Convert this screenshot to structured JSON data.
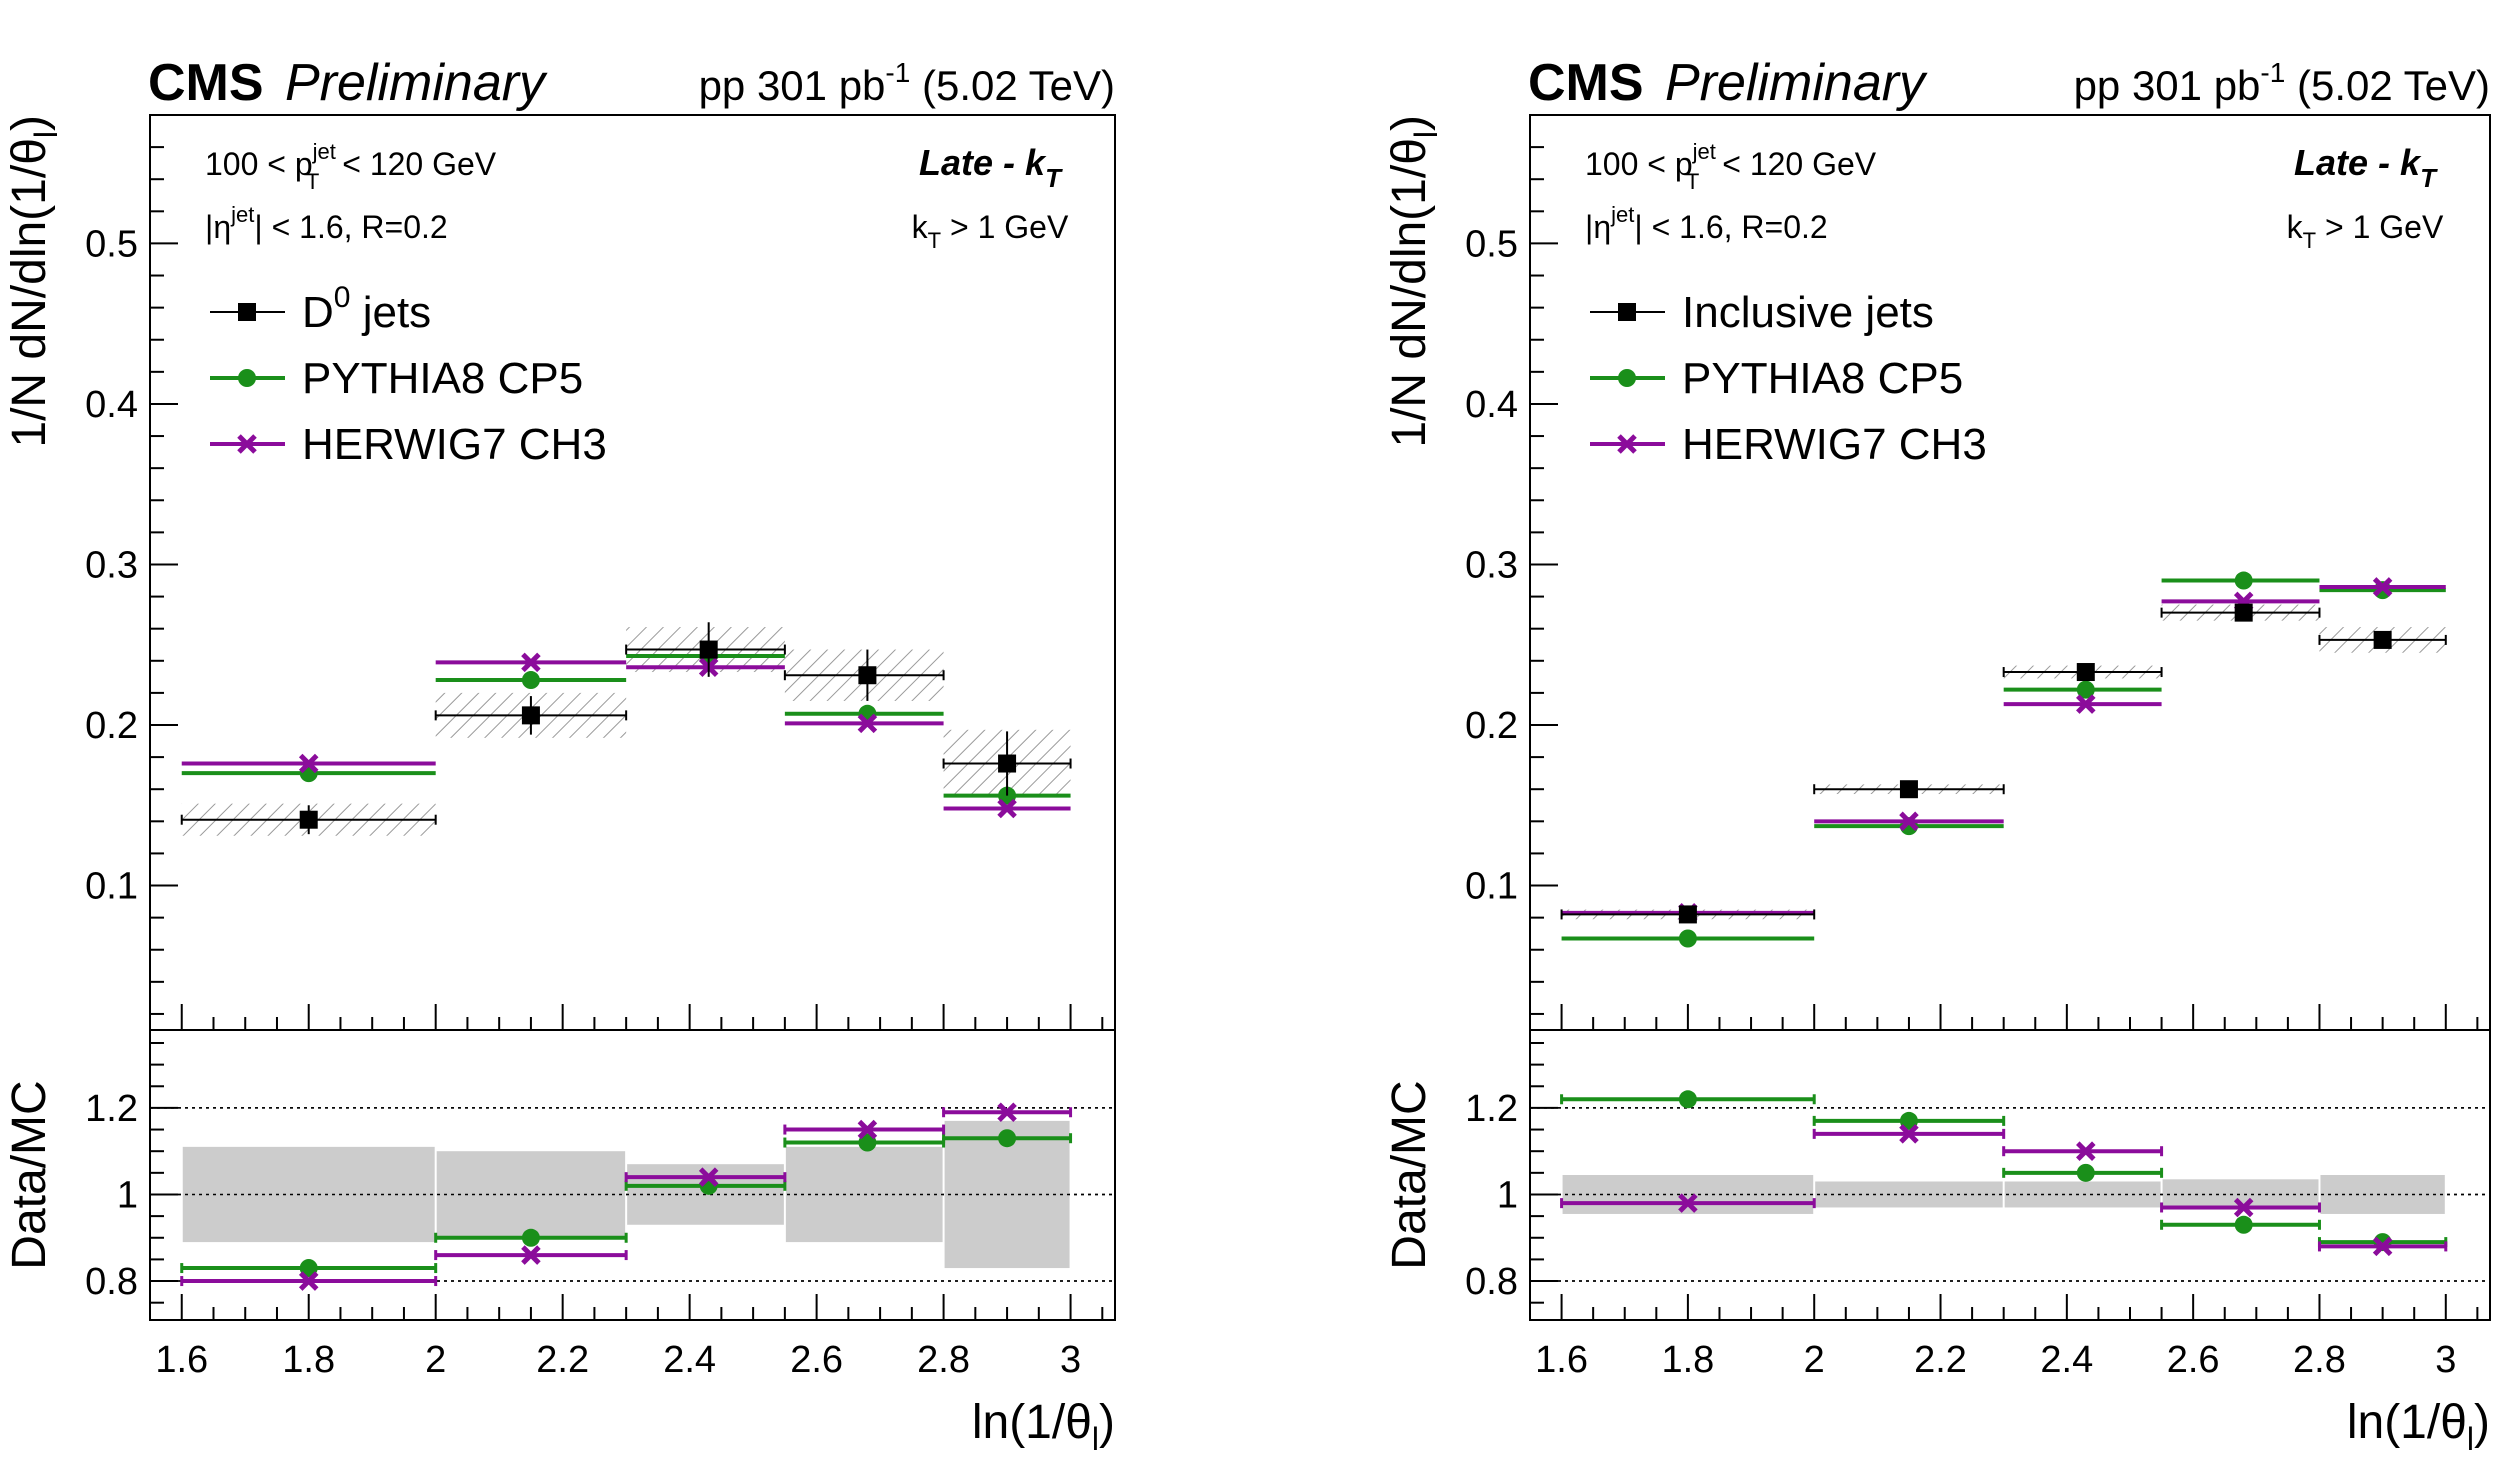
{
  "colors": {
    "data": "#000000",
    "pythia": "#1a8f1a",
    "herwig": "#8b0c9b",
    "syst_band": "#cccccc",
    "hatch": "#999999"
  },
  "chart_data": [
    {
      "type": "scatter",
      "panel": "left",
      "header": {
        "cms": "CMS",
        "preliminary": "Preliminary",
        "lumi": "pp 301 pb",
        "lumi_exp": "-1",
        "energy": "(5.02 TeV)"
      },
      "info": {
        "pt_lo": "100 < p",
        "pt_sup": "jet",
        "pt_sub": "T",
        "pt_hi": "< 120 GeV",
        "eta_pre": "|η",
        "eta_sup": "jet",
        "eta_post": "| < 1.6, R=0.2",
        "alg": "Late - k",
        "alg_sub": "T",
        "kt_pre": "k",
        "kt_sub": "T",
        "kt_post": "> 1 GeV"
      },
      "legend": [
        {
          "label": "D",
          "label_sup": "0",
          "label_post": " jets",
          "marker": "square",
          "series": "data"
        },
        {
          "label": "PYTHIA8 CP5",
          "marker": "circle",
          "series": "pythia"
        },
        {
          "label": "HERWIG7 CH3",
          "marker": "cross",
          "series": "herwig"
        }
      ],
      "ylabel": "1/N dN/dln(1/θ",
      "ylabel_sub": "l",
      "ylabel_close": ")",
      "ratio_ylabel": "Data/MC",
      "xlabel": "ln(1/θ",
      "xlabel_sub": "l",
      "xlabel_close": ")",
      "xlim": [
        1.55,
        3.07
      ],
      "ylim": [
        0.01,
        0.58
      ],
      "ratio_ylim": [
        0.71,
        1.38
      ],
      "yticks": [
        "0.1",
        "0.2",
        "0.3",
        "0.4",
        "0.5"
      ],
      "ratio_yticks": [
        "0.8",
        "1",
        "1.2"
      ],
      "xticks": [
        "1.6",
        "1.8",
        "2",
        "2.2",
        "2.4",
        "2.6",
        "2.8",
        "3"
      ],
      "bins": [
        [
          1.6,
          2.0
        ],
        [
          2.0,
          2.3
        ],
        [
          2.3,
          2.55
        ],
        [
          2.55,
          2.8
        ],
        [
          2.8,
          3.0
        ]
      ],
      "centers": [
        1.8,
        2.15,
        2.43,
        2.68,
        2.9
      ],
      "data": [
        0.141,
        0.206,
        0.247,
        0.231,
        0.176
      ],
      "data_stat": [
        0.009,
        0.012,
        0.017,
        0.016,
        0.02
      ],
      "data_syst": [
        0.01,
        0.014,
        0.014,
        0.016,
        0.021
      ],
      "pythia": [
        0.17,
        0.228,
        0.243,
        0.207,
        0.156
      ],
      "herwig": [
        0.176,
        0.239,
        0.236,
        0.201,
        0.148
      ],
      "ratio_pythia": [
        0.83,
        0.9,
        1.02,
        1.12,
        1.13
      ],
      "ratio_herwig": [
        0.8,
        0.86,
        1.04,
        1.15,
        1.19
      ],
      "ratio_syst": [
        0.11,
        0.1,
        0.07,
        0.11,
        0.17
      ]
    },
    {
      "type": "scatter",
      "panel": "right",
      "header": {
        "cms": "CMS",
        "preliminary": "Preliminary",
        "lumi": "pp 301 pb",
        "lumi_exp": "-1",
        "energy": "(5.02 TeV)"
      },
      "info": {
        "pt_lo": "100 < p",
        "pt_sup": "jet",
        "pt_sub": "T",
        "pt_hi": "< 120 GeV",
        "eta_pre": "|η",
        "eta_sup": "jet",
        "eta_post": "| < 1.6, R=0.2",
        "alg": "Late - k",
        "alg_sub": "T",
        "kt_pre": "k",
        "kt_sub": "T",
        "kt_post": "> 1 GeV"
      },
      "legend": [
        {
          "label": "Inclusive jets",
          "marker": "square",
          "series": "data"
        },
        {
          "label": "PYTHIA8 CP5",
          "marker": "circle",
          "series": "pythia"
        },
        {
          "label": "HERWIG7 CH3",
          "marker": "cross",
          "series": "herwig"
        }
      ],
      "ylabel": "1/N dN/dln(1/θ",
      "ylabel_sub": "l",
      "ylabel_close": ")",
      "ratio_ylabel": "Data/MC",
      "xlabel": "ln(1/θ",
      "xlabel_sub": "l",
      "xlabel_close": ")",
      "xlim": [
        1.55,
        3.07
      ],
      "ylim": [
        0.01,
        0.58
      ],
      "ratio_ylim": [
        0.71,
        1.38
      ],
      "yticks": [
        "0.1",
        "0.2",
        "0.3",
        "0.4",
        "0.5"
      ],
      "ratio_yticks": [
        "0.8",
        "1",
        "1.2"
      ],
      "xticks": [
        "1.6",
        "1.8",
        "2",
        "2.2",
        "2.4",
        "2.6",
        "2.8",
        "3"
      ],
      "bins": [
        [
          1.6,
          2.0
        ],
        [
          2.0,
          2.3
        ],
        [
          2.3,
          2.55
        ],
        [
          2.55,
          2.8
        ],
        [
          2.8,
          3.0
        ]
      ],
      "centers": [
        1.8,
        2.15,
        2.43,
        2.68,
        2.9
      ],
      "data": [
        0.082,
        0.16,
        0.233,
        0.27,
        0.253
      ],
      "data_stat": [
        0.002,
        0.002,
        0.003,
        0.003,
        0.003
      ],
      "data_syst": [
        0.003,
        0.003,
        0.004,
        0.005,
        0.008
      ],
      "pythia": [
        0.067,
        0.137,
        0.222,
        0.29,
        0.284
      ],
      "herwig": [
        0.083,
        0.14,
        0.213,
        0.277,
        0.286
      ],
      "ratio_pythia": [
        1.22,
        1.17,
        1.05,
        0.93,
        0.89
      ],
      "ratio_herwig": [
        0.98,
        1.14,
        1.1,
        0.97,
        0.88
      ],
      "ratio_syst": [
        0.045,
        0.03,
        0.03,
        0.035,
        0.045
      ]
    }
  ]
}
